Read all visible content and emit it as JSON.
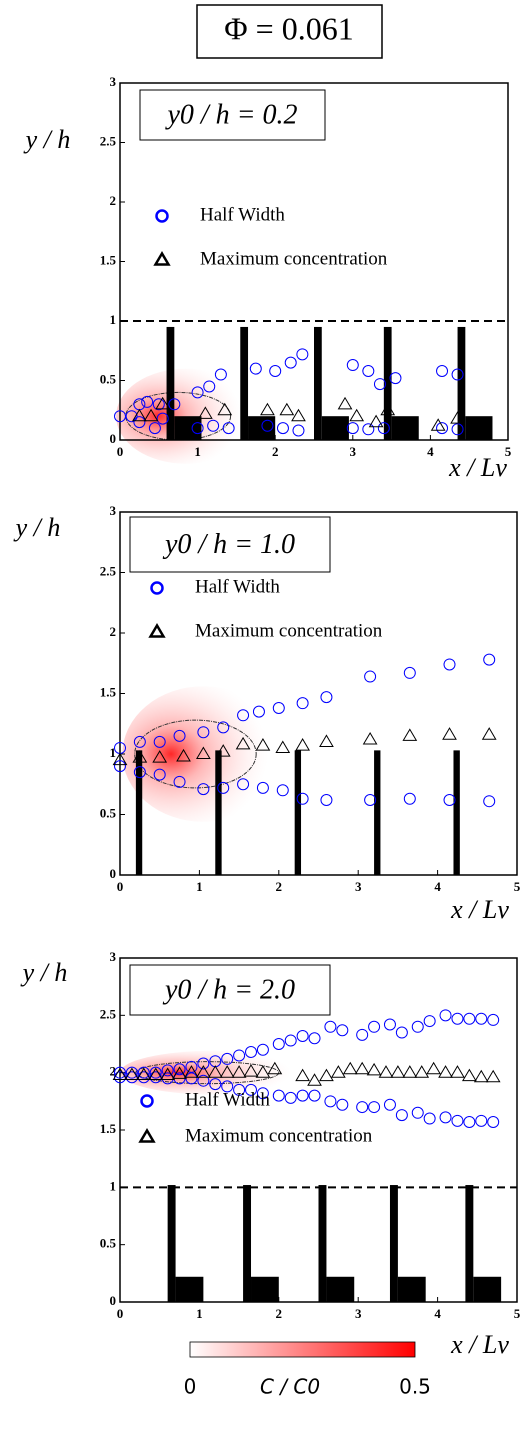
{
  "figure": {
    "title": "Φ = 0.061",
    "colorbar": {
      "label": "C / C0",
      "ticks": [
        0,
        0.5
      ],
      "colors": [
        "#ffffff",
        "#ff0000"
      ]
    }
  },
  "chart_data": [
    {
      "type": "scatter",
      "annotation": "y0 / h = 0.2",
      "xlabel": "x / Lv",
      "ylabel": "y / h",
      "xlim": [
        0,
        5
      ],
      "ylim": [
        0,
        3
      ],
      "xticks": [
        0,
        1,
        2,
        3,
        4,
        5
      ],
      "yticks": [
        0,
        0.5,
        1,
        1.5,
        2,
        2.5,
        3
      ],
      "reference_line": 1,
      "walls": {
        "x": [
          0.6,
          1.55,
          2.5,
          3.4,
          4.35
        ],
        "width": 0.1,
        "height": 0.95
      },
      "blocks": {
        "x": [
          0.7,
          1.65,
          2.6,
          3.5,
          4.45
        ],
        "width": 0.35,
        "height": 0.2
      },
      "series": [
        {
          "name": "Half Width",
          "marker": "circle",
          "color": "#0000ff",
          "x": [
            0,
            0.15,
            0.25,
            0.35,
            0.5,
            0.25,
            0.45,
            0.55,
            0.7,
            1.0,
            1.15,
            1.3,
            1.0,
            1.2,
            1.4,
            1.75,
            2.0,
            2.2,
            2.35,
            1.9,
            2.1,
            2.3,
            3.0,
            3.2,
            3.35,
            3.55,
            3.0,
            3.2,
            3.4,
            4.15,
            4.35,
            4.15,
            4.35
          ],
          "values": [
            0.2,
            0.2,
            0.3,
            0.32,
            0.3,
            0.15,
            0.1,
            0.18,
            0.3,
            0.4,
            0.45,
            0.55,
            0.1,
            0.12,
            0.1,
            0.6,
            0.58,
            0.65,
            0.72,
            0.12,
            0.1,
            0.08,
            0.63,
            0.58,
            0.47,
            0.52,
            0.1,
            0.09,
            0.1,
            0.58,
            0.55,
            0.1,
            0.09
          ]
        },
        {
          "name": "Maximum concentration",
          "marker": "triangle",
          "color": "#000000",
          "x": [
            0.25,
            0.4,
            0.55,
            1.1,
            1.35,
            1.9,
            2.15,
            2.3,
            2.9,
            3.05,
            3.3,
            3.45,
            4.1,
            4.35
          ],
          "values": [
            0.2,
            0.2,
            0.3,
            0.22,
            0.25,
            0.25,
            0.25,
            0.2,
            0.3,
            0.2,
            0.15,
            0.25,
            0.12,
            0.18
          ]
        }
      ]
    },
    {
      "type": "scatter",
      "annotation": "y0 / h = 1.0",
      "xlabel": "x / Lv",
      "ylabel": "y / h",
      "xlim": [
        0,
        5
      ],
      "ylim": [
        0,
        3
      ],
      "xticks": [
        0,
        1,
        2,
        3,
        4,
        5
      ],
      "yticks": [
        0,
        0.5,
        1,
        1.5,
        2,
        2.5,
        3
      ],
      "walls": {
        "x": [
          0.2,
          1.2,
          2.2,
          3.2,
          4.2
        ],
        "width": 0.08,
        "height": 1.03
      },
      "series": [
        {
          "name": "Half Width",
          "marker": "circle",
          "color": "#0000ff",
          "x": [
            0,
            0.25,
            0.5,
            0.75,
            1.05,
            1.3,
            1.55,
            1.75,
            2.0,
            2.3,
            2.6,
            3.15,
            3.65,
            4.15,
            4.65,
            0,
            0.25,
            0.5,
            0.75,
            1.05,
            1.3,
            1.55,
            1.8,
            2.05,
            2.3,
            2.6,
            3.15,
            3.65,
            4.15,
            4.65
          ],
          "values": [
            1.05,
            1.1,
            1.1,
            1.15,
            1.18,
            1.22,
            1.32,
            1.35,
            1.38,
            1.42,
            1.47,
            1.64,
            1.67,
            1.74,
            1.78,
            0.9,
            0.85,
            0.83,
            0.77,
            0.71,
            0.72,
            0.75,
            0.72,
            0.7,
            0.63,
            0.62,
            0.62,
            0.63,
            0.62,
            0.61
          ]
        },
        {
          "name": "Maximum concentration",
          "marker": "triangle",
          "color": "#000000",
          "x": [
            0,
            0.25,
            0.5,
            0.8,
            1.05,
            1.3,
            1.55,
            1.8,
            2.05,
            2.3,
            2.6,
            3.15,
            3.65,
            4.15,
            4.65
          ],
          "values": [
            0.95,
            0.97,
            0.97,
            0.98,
            1.0,
            1.02,
            1.08,
            1.07,
            1.05,
            1.07,
            1.1,
            1.12,
            1.15,
            1.16,
            1.16
          ]
        }
      ]
    },
    {
      "type": "scatter",
      "annotation": "y0 / h = 2.0",
      "xlabel": "x / Lv",
      "ylabel": "y / h",
      "xlim": [
        0,
        5
      ],
      "ylim": [
        0,
        3
      ],
      "xticks": [
        0,
        1,
        2,
        3,
        4,
        5
      ],
      "yticks": [
        0,
        0.5,
        1,
        1.5,
        2,
        2.5,
        3
      ],
      "reference_line": 1,
      "walls": {
        "x": [
          0.6,
          1.55,
          2.5,
          3.4,
          4.35
        ],
        "width": 0.1,
        "height": 1.02
      },
      "blocks": {
        "x": [
          0.7,
          1.65,
          2.6,
          3.5,
          4.45
        ],
        "width": 0.35,
        "height": 0.22
      },
      "series": [
        {
          "name": "Half Width",
          "marker": "circle",
          "color": "#0000ff",
          "x": [
            0,
            0.15,
            0.3,
            0.45,
            0.6,
            0.75,
            0.9,
            1.05,
            1.2,
            1.35,
            1.5,
            1.65,
            1.8,
            2.0,
            2.15,
            2.3,
            2.45,
            2.65,
            2.8,
            3.05,
            3.2,
            3.4,
            3.55,
            3.75,
            3.9,
            4.1,
            4.25,
            4.4,
            4.55,
            4.7,
            0,
            0.15,
            0.3,
            0.45,
            0.6,
            0.75,
            0.9,
            1.05,
            1.2,
            1.35,
            1.5,
            1.65,
            1.8,
            2.0,
            2.15,
            2.3,
            2.45,
            2.65,
            2.8,
            3.05,
            3.2,
            3.4,
            3.55,
            3.75,
            3.9,
            4.1,
            4.25,
            4.4,
            4.55,
            4.7
          ],
          "values": [
            2.0,
            2.0,
            2.0,
            2.0,
            2.02,
            2.03,
            2.05,
            2.08,
            2.1,
            2.12,
            2.15,
            2.18,
            2.2,
            2.25,
            2.28,
            2.32,
            2.3,
            2.4,
            2.37,
            2.33,
            2.4,
            2.42,
            2.35,
            2.4,
            2.45,
            2.5,
            2.47,
            2.47,
            2.47,
            2.46,
            1.96,
            1.96,
            1.96,
            1.96,
            1.95,
            1.95,
            1.95,
            1.93,
            1.9,
            1.88,
            1.85,
            1.85,
            1.82,
            1.8,
            1.78,
            1.8,
            1.8,
            1.75,
            1.72,
            1.7,
            1.7,
            1.72,
            1.63,
            1.65,
            1.6,
            1.61,
            1.58,
            1.57,
            1.58,
            1.57
          ]
        },
        {
          "name": "Maximum concentration",
          "marker": "triangle",
          "color": "#000000",
          "x": [
            0,
            0.15,
            0.3,
            0.45,
            0.6,
            0.75,
            0.9,
            1.05,
            1.2,
            1.35,
            1.5,
            1.65,
            1.8,
            1.95,
            2.3,
            2.45,
            2.6,
            2.75,
            2.9,
            3.05,
            3.2,
            3.35,
            3.5,
            3.65,
            3.8,
            3.95,
            4.1,
            4.25,
            4.4,
            4.55,
            4.7
          ],
          "values": [
            1.98,
            1.98,
            1.98,
            1.98,
            1.98,
            1.99,
            2.0,
            2.0,
            2.0,
            2.0,
            2.0,
            2.01,
            2.0,
            2.03,
            1.97,
            1.93,
            1.97,
            2.0,
            2.03,
            2.03,
            2.02,
            2.0,
            2.0,
            2.0,
            2.0,
            2.03,
            2.0,
            2.0,
            1.97,
            1.96,
            1.96
          ]
        }
      ]
    }
  ]
}
